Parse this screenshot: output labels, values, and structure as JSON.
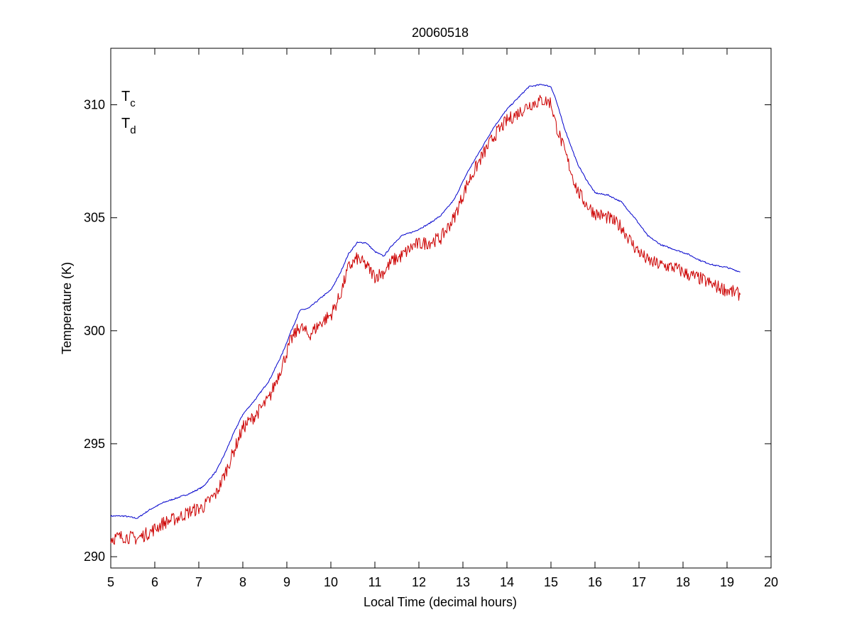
{
  "chart_data": {
    "type": "line",
    "title": "20060518",
    "xlabel": "Local Time (decimal hours)",
    "ylabel": "Temperature (K)",
    "xlim": [
      5,
      20
    ],
    "ylim": [
      289.5,
      312.5
    ],
    "xticks": [
      5,
      6,
      7,
      8,
      9,
      10,
      11,
      12,
      13,
      14,
      15,
      16,
      17,
      18,
      19,
      20
    ],
    "yticks": [
      290,
      295,
      300,
      305,
      310
    ],
    "grid": false,
    "legend": {
      "placement": "top-left",
      "entries": [
        {
          "base": "T",
          "sub": "c",
          "color": "#0000cc"
        },
        {
          "base": "T",
          "sub": "d",
          "color": "#cc0000"
        }
      ]
    },
    "series": [
      {
        "key": "Tc",
        "color": "#0000cc",
        "noise": 0.03,
        "x": [
          5.0,
          5.3,
          5.6,
          5.9,
          6.2,
          6.5,
          6.8,
          7.1,
          7.4,
          7.6,
          7.8,
          8.0,
          8.3,
          8.6,
          8.9,
          9.1,
          9.3,
          9.5,
          9.8,
          10.0,
          10.2,
          10.4,
          10.6,
          10.8,
          11.0,
          11.2,
          11.4,
          11.6,
          11.9,
          12.2,
          12.5,
          12.8,
          13.1,
          13.4,
          13.7,
          14.0,
          14.3,
          14.5,
          14.8,
          15.0,
          15.1,
          15.3,
          15.6,
          15.8,
          16.0,
          16.3,
          16.6,
          16.9,
          17.2,
          17.5,
          17.8,
          18.1,
          18.4,
          18.7,
          19.0,
          19.3
        ],
        "y": [
          291.8,
          291.8,
          291.7,
          292.1,
          292.4,
          292.6,
          292.8,
          293.1,
          293.8,
          294.6,
          295.5,
          296.3,
          297.0,
          297.8,
          299.0,
          300.0,
          300.9,
          301.0,
          301.5,
          301.8,
          302.5,
          303.4,
          303.9,
          303.9,
          303.5,
          303.3,
          303.8,
          304.2,
          304.4,
          304.7,
          305.1,
          305.8,
          307.0,
          308.0,
          309.0,
          309.8,
          310.4,
          310.8,
          310.9,
          310.8,
          310.3,
          309.0,
          307.4,
          306.7,
          306.1,
          306.0,
          305.7,
          305.0,
          304.2,
          303.8,
          303.6,
          303.4,
          303.1,
          302.9,
          302.8,
          302.6
        ]
      },
      {
        "key": "Td",
        "color": "#cc0000",
        "noise": 0.3,
        "x": [
          5.0,
          5.3,
          5.6,
          5.9,
          6.2,
          6.5,
          6.8,
          7.1,
          7.4,
          7.6,
          7.8,
          8.0,
          8.3,
          8.6,
          8.9,
          9.1,
          9.3,
          9.5,
          9.8,
          10.0,
          10.2,
          10.4,
          10.6,
          10.8,
          11.0,
          11.2,
          11.4,
          11.6,
          11.9,
          12.2,
          12.5,
          12.8,
          13.1,
          13.4,
          13.7,
          14.0,
          14.3,
          14.5,
          14.8,
          15.0,
          15.1,
          15.3,
          15.6,
          15.8,
          16.0,
          16.3,
          16.6,
          16.9,
          17.2,
          17.5,
          17.8,
          18.1,
          18.4,
          18.7,
          19.0,
          19.3
        ],
        "y": [
          290.8,
          290.9,
          290.8,
          291.1,
          291.5,
          291.7,
          292.0,
          292.2,
          292.8,
          293.7,
          294.7,
          295.7,
          296.3,
          297.0,
          298.5,
          299.6,
          300.2,
          299.8,
          300.4,
          300.7,
          301.5,
          302.8,
          303.2,
          302.9,
          302.4,
          302.6,
          303.1,
          303.3,
          303.8,
          303.9,
          304.1,
          305.0,
          306.5,
          307.6,
          308.6,
          309.3,
          309.7,
          310.0,
          310.2,
          310.1,
          309.2,
          308.0,
          306.2,
          305.6,
          305.2,
          305.0,
          304.6,
          303.7,
          303.1,
          302.9,
          302.8,
          302.5,
          302.3,
          302.0,
          301.8,
          301.6
        ]
      }
    ]
  }
}
